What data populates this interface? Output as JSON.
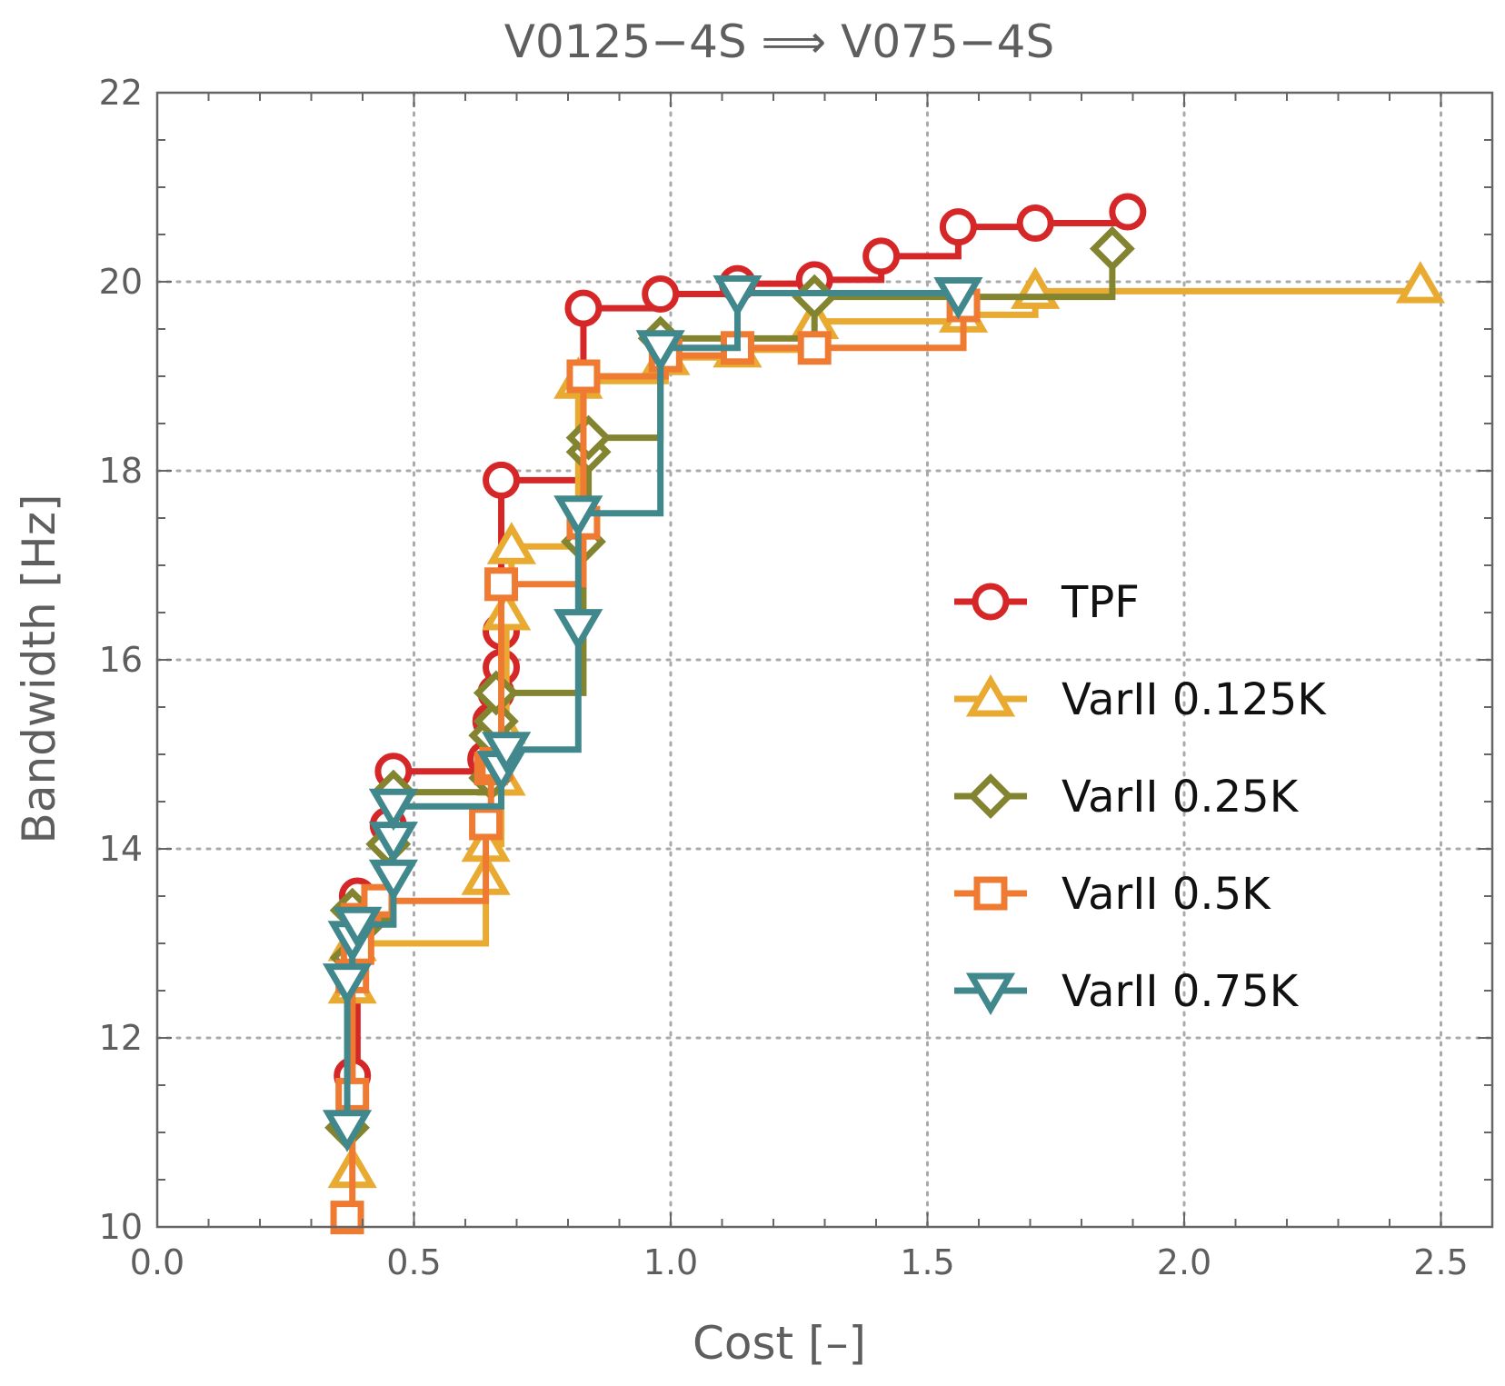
{
  "chart_data": {
    "type": "line",
    "step": "post",
    "title": "V0125−4S ⟹ V075−4S",
    "xlabel": "Cost [–]",
    "ylabel": "Bandwidth [Hz]",
    "xlim": [
      0.0,
      2.6
    ],
    "ylim": [
      10,
      22
    ],
    "xticks": [
      0.0,
      0.5,
      1.0,
      1.5,
      2.0,
      2.5
    ],
    "xtick_labels": [
      "0.0",
      "0.5",
      "1.0",
      "1.5",
      "2.0",
      "2.5"
    ],
    "yticks": [
      10,
      12,
      14,
      16,
      18,
      20,
      22
    ],
    "ytick_labels": [
      "10",
      "12",
      "14",
      "16",
      "18",
      "20",
      "22"
    ],
    "grid": true,
    "grid_style": "dotted",
    "legend_position": "center-right",
    "series": [
      {
        "name": "TPF",
        "color": "#d62728",
        "marker": "circle",
        "x": [
          0.38,
          0.39,
          0.45,
          0.46,
          0.64,
          0.65,
          0.66,
          0.67,
          0.67,
          0.67,
          0.83,
          0.98,
          1.13,
          1.28,
          1.41,
          1.56,
          1.71,
          1.89
        ],
        "y": [
          11.6,
          13.5,
          14.25,
          14.82,
          14.95,
          15.35,
          15.65,
          15.92,
          16.3,
          17.9,
          19.72,
          19.87,
          19.98,
          20.02,
          20.27,
          20.58,
          20.62,
          20.74
        ]
      },
      {
        "name": "VarII 0.125K",
        "color": "#e8aa30",
        "marker": "triangle-up",
        "x": [
          0.38,
          0.38,
          0.38,
          0.64,
          0.64,
          0.67,
          0.67,
          0.68,
          0.69,
          0.82,
          0.99,
          1.13,
          1.28,
          1.57,
          1.71,
          2.46
        ],
        "y": [
          10.6,
          12.55,
          13.0,
          13.7,
          14.05,
          14.75,
          15.3,
          16.5,
          17.2,
          18.95,
          19.2,
          19.28,
          19.58,
          19.65,
          19.9,
          19.96
        ]
      },
      {
        "name": "VarII 0.25K",
        "color": "#838430",
        "marker": "diamond",
        "x": [
          0.37,
          0.38,
          0.38,
          0.41,
          0.45,
          0.46,
          0.65,
          0.65,
          0.66,
          0.66,
          0.83,
          0.84,
          0.84,
          0.98,
          1.28,
          1.86
        ],
        "y": [
          11.05,
          12.85,
          13.35,
          13.25,
          14.05,
          14.6,
          14.75,
          15.2,
          15.35,
          15.65,
          17.25,
          18.2,
          18.35,
          19.4,
          19.84,
          20.35
        ]
      },
      {
        "name": "VarII 0.5K",
        "color": "#ef7a32",
        "marker": "square",
        "x": [
          0.37,
          0.38,
          0.38,
          0.39,
          0.39,
          0.43,
          0.64,
          0.65,
          0.66,
          0.67,
          0.83,
          0.83,
          0.99,
          1.13,
          1.28,
          1.57
        ],
        "y": [
          10.1,
          11.4,
          12.65,
          12.95,
          13.25,
          13.45,
          14.27,
          14.85,
          14.9,
          16.8,
          17.45,
          19.0,
          19.22,
          19.3,
          19.3,
          19.75
        ]
      },
      {
        "name": "VarII 0.75K",
        "color": "#40888c",
        "marker": "triangle-down",
        "x": [
          0.37,
          0.37,
          0.38,
          0.39,
          0.46,
          0.46,
          0.46,
          0.67,
          0.68,
          0.82,
          0.82,
          0.98,
          1.13,
          1.56
        ],
        "y": [
          11.05,
          12.6,
          13.05,
          13.2,
          13.7,
          14.1,
          14.45,
          14.85,
          15.05,
          16.35,
          17.55,
          19.3,
          19.88,
          19.86
        ]
      }
    ]
  }
}
